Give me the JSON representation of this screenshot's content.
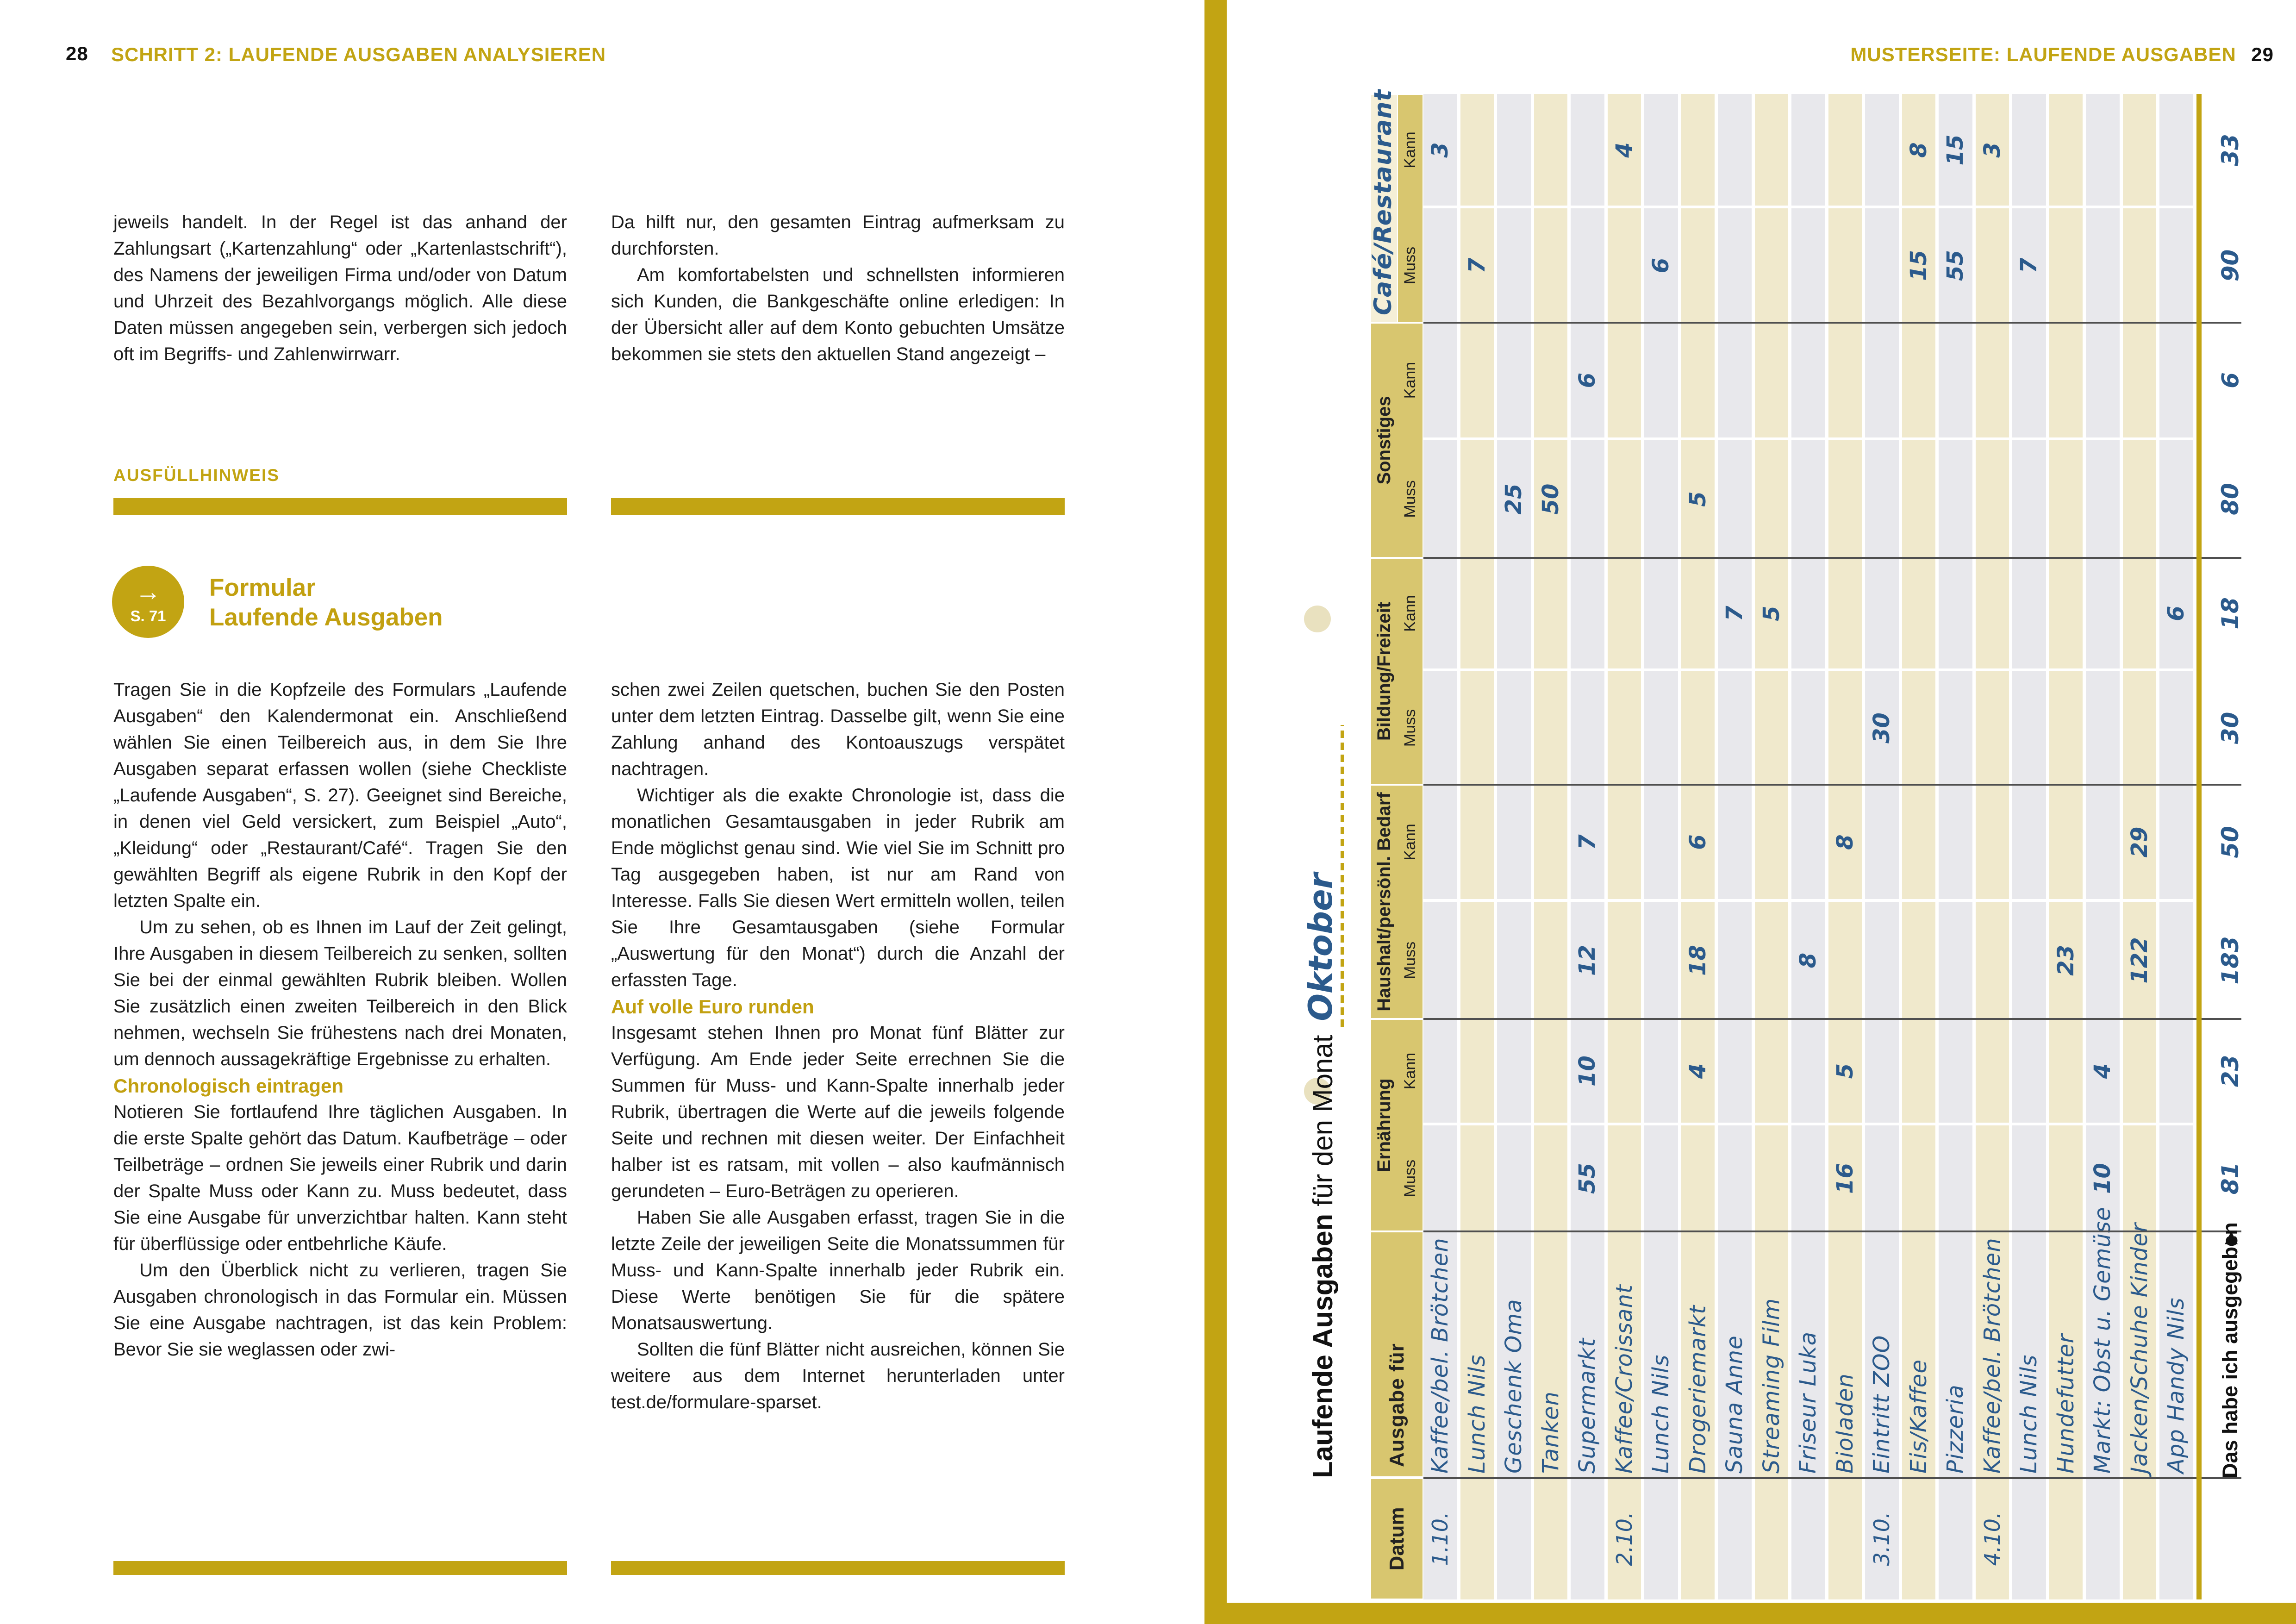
{
  "colors": {
    "accent_gold": "#c2a413",
    "table_header_gold": "#d8c66f",
    "row_cream": "#f0e9cc",
    "row_gray": "#e8e8ec",
    "custom_header_cream": "#f5efd7",
    "handwriting_blue": "#2b5a8c",
    "grid_line": "#4f4f4f"
  },
  "page_left": {
    "page_number": "28",
    "header": "SCHRITT 2: LAUFENDE AUSGABEN ANALYSIEREN",
    "col1_para1": "jeweils handelt. In der Regel ist das anhand der Zahlungsart („Kartenzahlung“ oder „Kartenlastschrift“), des Namens der jeweiligen Firma und/oder von Datum und Uhrzeit des Bezahlvorgangs möglich. Alle diese Daten müssen angegeben sein, verbergen sich jedoch oft im Begriffs- und Zahlenwirrwarr.",
    "ausfuellhinweis_label": "AUSFÜLLHINWEIS",
    "ref_page": "S. 71",
    "ref_arrow": "→",
    "form_heading_line1": "Formular",
    "form_heading_line2": "Laufende Ausgaben",
    "col1_para2": "Tragen Sie in die Kopfzeile des Formulars „Laufende Ausgaben“ den Kalendermonat ein. Anschließend wählen Sie einen Teilbereich aus, in dem Sie Ihre Ausgaben separat erfassen wollen (siehe Checkliste „Laufende Ausgaben“, S. 27). Geeignet sind Bereiche, in denen viel Geld versickert, zum Beispiel „Auto“, „Kleidung“ oder „Restaurant/Café“. Tragen Sie den gewählten Begriff als eigene Rubrik in den Kopf der letzten Spalte ein.",
    "col1_para3": "Um zu sehen, ob es Ihnen im Lauf der Zeit gelingt, Ihre Ausgaben in diesem Teilbereich zu senken, sollten Sie bei der einmal gewählten Rubrik bleiben. Wollen Sie zusätzlich einen zweiten Teilbereich in den Blick nehmen, wechseln Sie frühestens nach drei Monaten, um dennoch aussagekräftige Ergebnisse zu erhalten.",
    "subhead1": "Chronologisch eintragen",
    "col1_para4": "Notieren Sie fortlaufend Ihre täglichen Ausgaben. In die erste Spalte gehört das Datum. Kaufbeträge – oder Teilbeträge – ordnen Sie jeweils einer Rubrik und darin der Spalte Muss oder Kann zu. Muss bedeutet, dass Sie eine Ausgabe für unverzichtbar halten. Kann steht für überflüssige oder entbehrliche Käufe.",
    "col1_para5": "Um den Überblick nicht zu verlieren, tragen Sie Ausgaben chronologisch in das Formular ein. Müssen Sie eine Ausgabe nachtragen, ist das kein Problem: Bevor Sie sie weglassen oder zwi-",
    "col2_para1": "Da hilft nur, den gesamten Eintrag aufmerksam zu durchforsten.",
    "col2_para2": "Am komfortabelsten und schnellsten informieren sich Kunden, die Bankgeschäfte online erledigen: In der Übersicht aller auf dem Konto gebuchten Umsätze bekommen sie stets den aktuellen Stand angezeigt –",
    "col2_para3": "schen zwei Zeilen quetschen, buchen Sie den Posten unter dem letzten Eintrag. Dasselbe gilt, wenn Sie eine Zahlung anhand des Kontoauszugs verspätet nachtragen.",
    "col2_para4": "Wichtiger als die exakte Chronologie ist, dass die monatlichen Gesamtausgaben in jeder Rubrik am Ende möglichst genau sind. Wie viel Sie im Schnitt pro Tag ausgegeben haben, ist nur am Rand von Interesse. Falls Sie diesen Wert ermitteln wollen, teilen Sie Ihre Gesamtausgaben (siehe Formular „Auswertung für den Monat“) durch die Anzahl der erfassten Tage.",
    "subhead2": "Auf volle Euro runden",
    "col2_para5": "Insgesamt stehen Ihnen pro Monat fünf Blätter zur Verfügung. Am Ende jeder Seite errechnen Sie die Summen für Muss- und Kann-Spalte innerhalb jeder Rubrik, übertragen die Werte auf die jeweils folgende Seite und rechnen mit diesen weiter. Der Einfachheit halber ist es ratsam, mit vollen – also kaufmännisch gerundeten – Euro-Beträgen zu operieren.",
    "col2_para6": "Haben Sie alle Ausgaben erfasst, tragen Sie in die letzte Zeile der jeweiligen Seite die Monatssummen für Muss- und Kann-Spalte innerhalb jeder Rubrik ein. Diese Werte benötigen Sie für die spätere Monatsauswertung.",
    "col2_para7": "Sollten die fünf Blätter nicht ausreichen, können Sie weitere aus dem Internet herunterladen unter test.de/formulare-sparset."
  },
  "page_right": {
    "header": "MUSTERSEITE: LAUFENDE AUSGABEN",
    "page_number": "29",
    "form": {
      "title_bold": "Laufende Ausgaben",
      "title_rest": "für den Monat",
      "month_value": "Oktober",
      "col_datum": "Datum",
      "col_ausgabe": "Ausgabe für",
      "muss_label": "Muss",
      "kann_label": "Kann",
      "summary_label": "Das habe ich ausgegeben",
      "summary_arrow": "▶",
      "rubrics": [
        {
          "key": "ern",
          "name": "Ernährung",
          "custom": false
        },
        {
          "key": "hau",
          "name": "Haushalt/persönl. Bedarf",
          "custom": false
        },
        {
          "key": "bil",
          "name": "Bildung/Freizeit",
          "custom": false
        },
        {
          "key": "son",
          "name": "Sonstiges",
          "custom": false
        },
        {
          "key": "caf",
          "name": "Café/Restaurant",
          "custom": true
        }
      ],
      "rows": [
        {
          "date": "1.10.",
          "label": "Kaffee/bel. Brötchen",
          "ern": [
            "",
            ""
          ],
          "hau": [
            "",
            ""
          ],
          "bil": [
            "",
            ""
          ],
          "son": [
            "",
            ""
          ],
          "caf": [
            "",
            "3"
          ]
        },
        {
          "date": "",
          "label": "Lunch Nils",
          "ern": [
            "",
            ""
          ],
          "hau": [
            "",
            ""
          ],
          "bil": [
            "",
            ""
          ],
          "son": [
            "",
            ""
          ],
          "caf": [
            "7",
            ""
          ]
        },
        {
          "date": "",
          "label": "Geschenk Oma",
          "ern": [
            "",
            ""
          ],
          "hau": [
            "",
            ""
          ],
          "bil": [
            "",
            ""
          ],
          "son": [
            "25",
            ""
          ],
          "caf": [
            "",
            ""
          ]
        },
        {
          "date": "",
          "label": "Tanken",
          "ern": [
            "",
            ""
          ],
          "hau": [
            "",
            ""
          ],
          "bil": [
            "",
            ""
          ],
          "son": [
            "50",
            ""
          ],
          "caf": [
            "",
            ""
          ]
        },
        {
          "date": "",
          "label": "Supermarkt",
          "ern": [
            "55",
            "10"
          ],
          "hau": [
            "12",
            "7"
          ],
          "bil": [
            "",
            ""
          ],
          "son": [
            "",
            "6"
          ],
          "caf": [
            "",
            ""
          ]
        },
        {
          "date": "2.10.",
          "label": "Kaffee/Croissant",
          "ern": [
            "",
            ""
          ],
          "hau": [
            "",
            ""
          ],
          "bil": [
            "",
            ""
          ],
          "son": [
            "",
            ""
          ],
          "caf": [
            "",
            "4"
          ]
        },
        {
          "date": "",
          "label": "Lunch Nils",
          "ern": [
            "",
            ""
          ],
          "hau": [
            "",
            ""
          ],
          "bil": [
            "",
            ""
          ],
          "son": [
            "",
            ""
          ],
          "caf": [
            "6",
            ""
          ]
        },
        {
          "date": "",
          "label": "Drogeriemarkt",
          "ern": [
            "",
            "4"
          ],
          "hau": [
            "18",
            "6"
          ],
          "bil": [
            "",
            ""
          ],
          "son": [
            "5",
            ""
          ],
          "caf": [
            "",
            ""
          ]
        },
        {
          "date": "",
          "label": "Sauna Anne",
          "ern": [
            "",
            ""
          ],
          "hau": [
            "",
            ""
          ],
          "bil": [
            "",
            "7"
          ],
          "son": [
            "",
            ""
          ],
          "caf": [
            "",
            ""
          ]
        },
        {
          "date": "",
          "label": "Streaming Film",
          "ern": [
            "",
            ""
          ],
          "hau": [
            "",
            ""
          ],
          "bil": [
            "",
            "5"
          ],
          "son": [
            "",
            ""
          ],
          "caf": [
            "",
            ""
          ]
        },
        {
          "date": "",
          "label": "Friseur Luka",
          "ern": [
            "",
            ""
          ],
          "hau": [
            "8",
            ""
          ],
          "bil": [
            "",
            ""
          ],
          "son": [
            "",
            ""
          ],
          "caf": [
            "",
            ""
          ]
        },
        {
          "date": "",
          "label": "Bioladen",
          "ern": [
            "16",
            "5"
          ],
          "hau": [
            "",
            "8"
          ],
          "bil": [
            "",
            ""
          ],
          "son": [
            "",
            ""
          ],
          "caf": [
            "",
            ""
          ]
        },
        {
          "date": "3.10.",
          "label": "Eintritt ZOO",
          "ern": [
            "",
            ""
          ],
          "hau": [
            "",
            ""
          ],
          "bil": [
            "30",
            ""
          ],
          "son": [
            "",
            ""
          ],
          "caf": [
            "",
            ""
          ]
        },
        {
          "date": "",
          "label": "Eis/Kaffee",
          "ern": [
            "",
            ""
          ],
          "hau": [
            "",
            ""
          ],
          "bil": [
            "",
            ""
          ],
          "son": [
            "",
            ""
          ],
          "caf": [
            "15",
            "8"
          ]
        },
        {
          "date": "",
          "label": "Pizzeria",
          "ern": [
            "",
            ""
          ],
          "hau": [
            "",
            ""
          ],
          "bil": [
            "",
            ""
          ],
          "son": [
            "",
            ""
          ],
          "caf": [
            "55",
            "15"
          ]
        },
        {
          "date": "4.10.",
          "label": "Kaffee/bel. Brötchen",
          "ern": [
            "",
            ""
          ],
          "hau": [
            "",
            ""
          ],
          "bil": [
            "",
            ""
          ],
          "son": [
            "",
            ""
          ],
          "caf": [
            "",
            "3"
          ]
        },
        {
          "date": "",
          "label": "Lunch Nils",
          "ern": [
            "",
            ""
          ],
          "hau": [
            "",
            ""
          ],
          "bil": [
            "",
            ""
          ],
          "son": [
            "",
            ""
          ],
          "caf": [
            "7",
            ""
          ]
        },
        {
          "date": "",
          "label": "Hundefutter",
          "ern": [
            "",
            ""
          ],
          "hau": [
            "23",
            ""
          ],
          "bil": [
            "",
            ""
          ],
          "son": [
            "",
            ""
          ],
          "caf": [
            "",
            ""
          ]
        },
        {
          "date": "",
          "label": "Markt: Obst u. Gemüse",
          "ern": [
            "10",
            "4"
          ],
          "hau": [
            "",
            ""
          ],
          "bil": [
            "",
            ""
          ],
          "son": [
            "",
            ""
          ],
          "caf": [
            "",
            ""
          ]
        },
        {
          "date": "",
          "label": "Jacken/Schuhe Kinder",
          "ern": [
            "",
            ""
          ],
          "hau": [
            "122",
            "29"
          ],
          "bil": [
            "",
            ""
          ],
          "son": [
            "",
            ""
          ],
          "caf": [
            "",
            ""
          ]
        },
        {
          "date": "",
          "label": "App Handy Nils",
          "ern": [
            "",
            ""
          ],
          "hau": [
            "",
            ""
          ],
          "bil": [
            "",
            "6"
          ],
          "son": [
            "",
            ""
          ],
          "caf": [
            "",
            ""
          ]
        }
      ],
      "sums": {
        "ern": [
          "81",
          "23"
        ],
        "hau": [
          "183",
          "50"
        ],
        "bil": [
          "30",
          "18"
        ],
        "son": [
          "80",
          "6"
        ],
        "caf": [
          "90",
          "33"
        ]
      }
    }
  }
}
